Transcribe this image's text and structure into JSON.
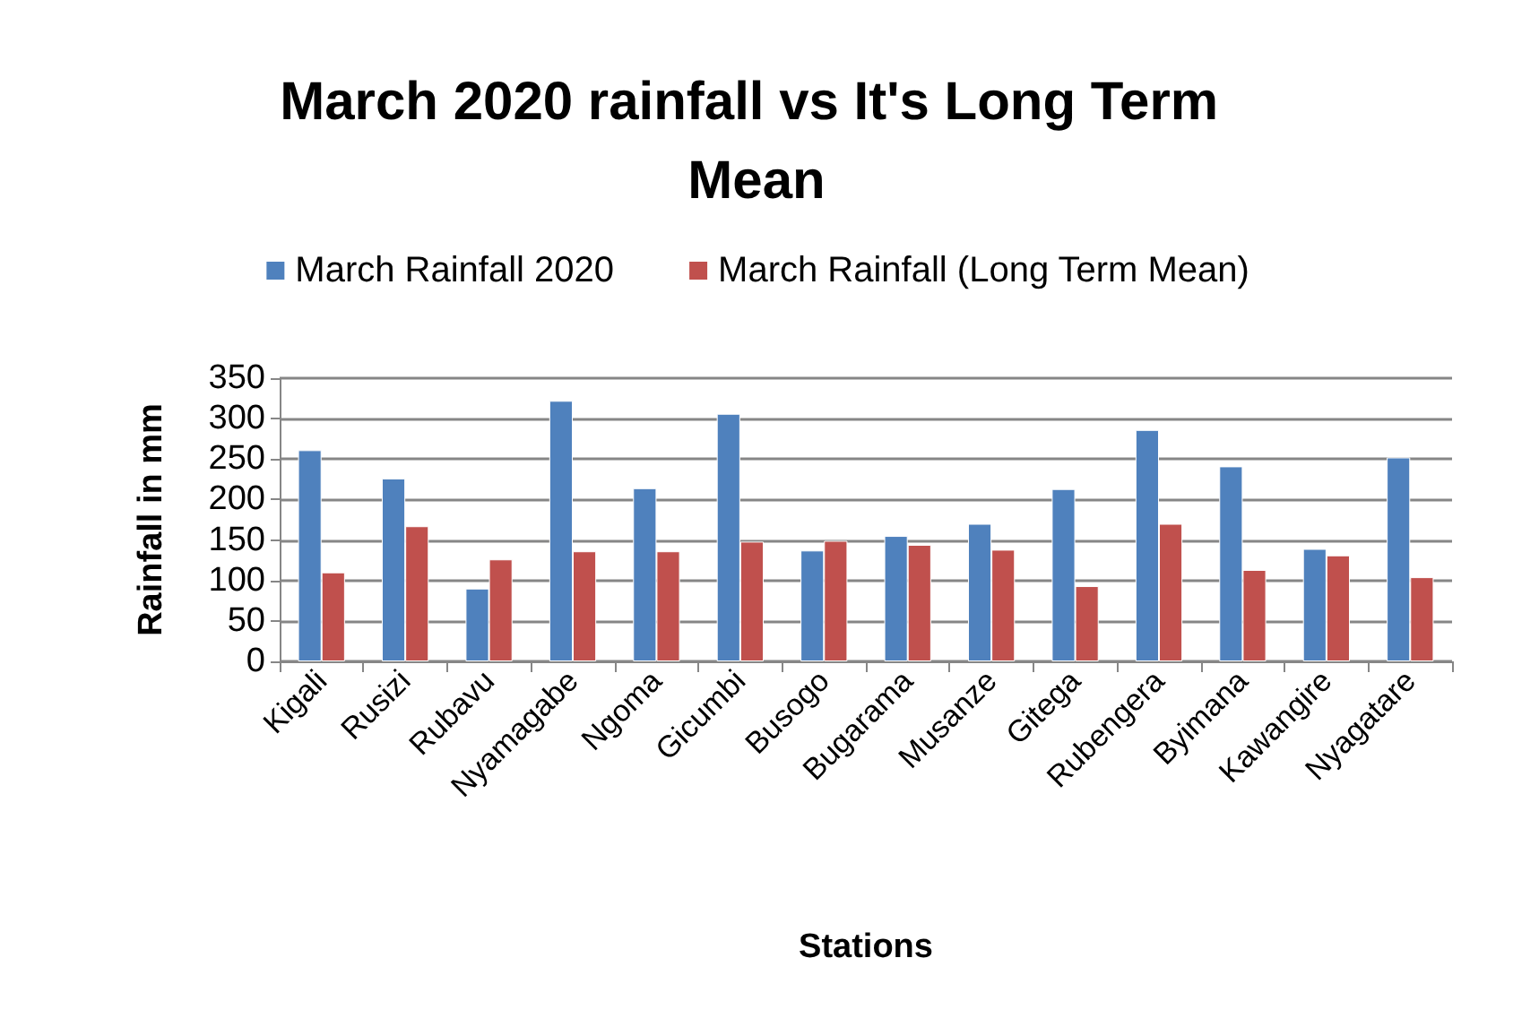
{
  "chart_data": {
    "type": "bar",
    "title": "March 2020 rainfall vs It's Long Term Mean",
    "xlabel": "Stations",
    "ylabel": "Rainfall in mm",
    "categories": [
      "Kigali",
      "Rusizi",
      "Rubavu",
      "Nyamagabe",
      "Ngoma",
      "Gicumbi",
      "Busogo",
      "Bugarama",
      "Musanze",
      "Gitega",
      "Rubengera",
      "Byimana",
      "Kawangire",
      "Nyagatare"
    ],
    "series": [
      {
        "name": "March Rainfall 2020",
        "color": "#4f81bd",
        "values": [
          261,
          226,
          90,
          322,
          214,
          306,
          137,
          155,
          170,
          213,
          286,
          241,
          139,
          252
        ]
      },
      {
        "name": "March Rainfall (Long Term Mean)",
        "color": "#c0504d",
        "values": [
          110,
          167,
          126,
          136,
          136,
          148,
          149,
          144,
          138,
          93,
          170,
          113,
          131,
          104
        ]
      }
    ],
    "ylim": [
      0,
      350
    ],
    "yticks": [
      0,
      50,
      100,
      150,
      200,
      250,
      300,
      350
    ],
    "grid": "y",
    "legend": "top"
  }
}
